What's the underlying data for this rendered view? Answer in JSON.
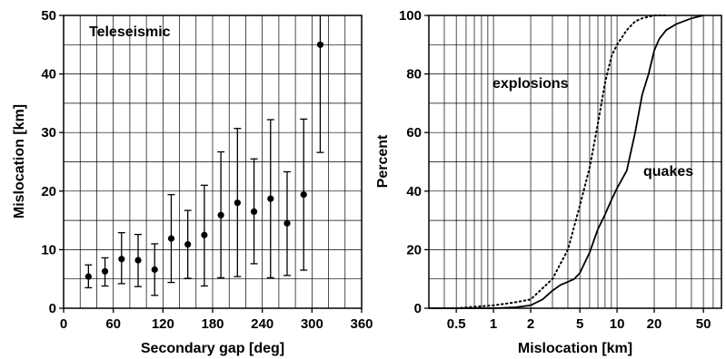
{
  "chart_data": [
    {
      "type": "scatter",
      "title": "",
      "annotation": "Teleseismic",
      "xlabel": "Secondary gap [deg]",
      "ylabel": "Mislocation [km]",
      "xlim": [
        0,
        360
      ],
      "ylim": [
        0,
        50
      ],
      "xticks": [
        0,
        60,
        120,
        180,
        240,
        300,
        360
      ],
      "yticks": [
        0,
        10,
        20,
        30,
        40,
        50
      ],
      "grid": true,
      "error_bars": true,
      "points": [
        {
          "x": 30,
          "y": 5.4,
          "low": 3.5,
          "high": 7.4
        },
        {
          "x": 50,
          "y": 6.3,
          "low": 3.8,
          "high": 8.6
        },
        {
          "x": 70,
          "y": 8.4,
          "low": 4.2,
          "high": 12.9
        },
        {
          "x": 90,
          "y": 8.2,
          "low": 3.7,
          "high": 12.6
        },
        {
          "x": 110,
          "y": 6.6,
          "low": 2.2,
          "high": 11.0
        },
        {
          "x": 130,
          "y": 11.9,
          "low": 4.4,
          "high": 19.4
        },
        {
          "x": 150,
          "y": 10.9,
          "low": 5.1,
          "high": 16.7
        },
        {
          "x": 170,
          "y": 12.5,
          "low": 3.8,
          "high": 21.0
        },
        {
          "x": 190,
          "y": 15.9,
          "low": 5.2,
          "high": 26.7
        },
        {
          "x": 210,
          "y": 18.0,
          "low": 5.4,
          "high": 30.7
        },
        {
          "x": 230,
          "y": 16.5,
          "low": 7.6,
          "high": 25.5
        },
        {
          "x": 250,
          "y": 18.7,
          "low": 5.2,
          "high": 32.2
        },
        {
          "x": 270,
          "y": 14.5,
          "low": 5.6,
          "high": 23.3
        },
        {
          "x": 290,
          "y": 19.4,
          "low": 6.5,
          "high": 32.3
        },
        {
          "x": 310,
          "y": 45.0,
          "low": 26.6,
          "high": 50.0
        }
      ]
    },
    {
      "type": "line",
      "title": "",
      "xlabel": "Mislocation [km]",
      "ylabel": "Percent",
      "xscale": "log",
      "xlim": [
        0.3,
        70
      ],
      "ylim": [
        0,
        100
      ],
      "xticks": [
        0.5,
        1,
        2,
        5,
        10,
        20,
        50
      ],
      "xtick_labels": [
        "0.5",
        "1",
        "2",
        "5",
        "10",
        "20",
        "50"
      ],
      "yticks": [
        0,
        20,
        40,
        60,
        80,
        100
      ],
      "grid": true,
      "series": [
        {
          "name": "explosions",
          "style": "dotted",
          "x": [
            0.5,
            0.7,
            1,
            1.5,
            2,
            3,
            4,
            5,
            6,
            7,
            8,
            9,
            10,
            12,
            14,
            16,
            20,
            25
          ],
          "y": [
            0,
            0.5,
            1,
            2,
            3,
            10,
            20,
            35,
            48,
            63,
            77,
            86,
            90,
            95,
            98,
            99,
            100,
            100
          ]
        },
        {
          "name": "quakes",
          "style": "solid",
          "x": [
            0.3,
            0.5,
            1,
            1.5,
            2,
            2.5,
            3,
            3.5,
            4,
            4.5,
            5,
            6,
            7,
            8,
            9,
            10,
            12,
            14,
            16,
            18,
            20,
            22,
            25,
            30,
            40,
            50
          ],
          "y": [
            0,
            0,
            0,
            0.3,
            1,
            3,
            6,
            8,
            9,
            10,
            12,
            19,
            27,
            32,
            37,
            41,
            47,
            60,
            73,
            80,
            88,
            92,
            95,
            97,
            99,
            100
          ]
        }
      ]
    }
  ]
}
